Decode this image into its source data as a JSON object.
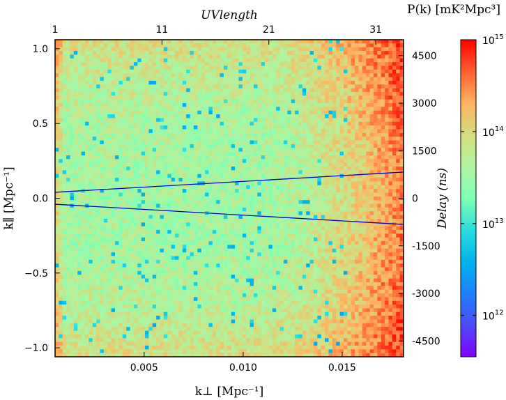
{
  "chart_data": {
    "type": "heatmap",
    "title": "",
    "xlabel": "k⊥ [Mpc⁻¹]",
    "ylabel": "k∥ [Mpc⁻¹]",
    "top_xlabel": "UVlength",
    "right_ylabel": "Delay (ns)",
    "colorbar_label": "P(k) [mK²Mpc³]",
    "xlim": [
      0.0005,
      0.0181
    ],
    "ylim": [
      -1.06,
      1.06
    ],
    "x_ticks": [
      0.005,
      0.01,
      0.015
    ],
    "x_tick_labels": [
      "0.005",
      "0.010",
      "0.015"
    ],
    "y_ticks": [
      -1.0,
      -0.5,
      0.0,
      0.5,
      1.0
    ],
    "y_tick_labels": [
      "−1.0",
      "−0.5",
      "0.0",
      "0.5",
      "1.0"
    ],
    "top_ticks": [
      1,
      11,
      21,
      31
    ],
    "top_tick_labels": [
      "1",
      "11",
      "21",
      "31"
    ],
    "top_range": [
      1,
      33.6
    ],
    "right_ticks": [
      -4500,
      -3000,
      -1500,
      0,
      1500,
      3000,
      4500
    ],
    "right_tick_labels": [
      "-4500",
      "-3000",
      "-1500",
      "0",
      "1500",
      "3000",
      "4500"
    ],
    "right_range": [
      -5000,
      5000
    ],
    "colorbar": {
      "scale": "log",
      "range_exponent": [
        11.55,
        15
      ],
      "ticks_exponent": [
        12,
        13,
        14,
        15
      ],
      "tick_labels": [
        "10",
        "10",
        "10",
        "10"
      ],
      "tick_exponent_labels": [
        "12",
        "13",
        "14",
        "15"
      ],
      "colormap": "rainbow"
    },
    "grid": {
      "nx": 93,
      "ny": 85
    },
    "field_log10": {
      "center_base": 13.55,
      "edge_base": 13.95,
      "right_edge_peak": 14.8,
      "right_ramp_start_fraction": 0.6,
      "left_edge_extra": 0.45,
      "noise_amplitude": 0.28,
      "low_outlier_rate": 0.035,
      "low_outlier_value": 12.5
    },
    "lines": [
      {
        "name": "horizon-upper",
        "x": [
          0.0005,
          0.0181
        ],
        "y": [
          0.04,
          0.175
        ],
        "color": "#0000cc"
      },
      {
        "name": "horizon-lower",
        "x": [
          0.0005,
          0.0181
        ],
        "y": [
          -0.04,
          -0.175
        ],
        "color": "#0000cc"
      }
    ]
  }
}
